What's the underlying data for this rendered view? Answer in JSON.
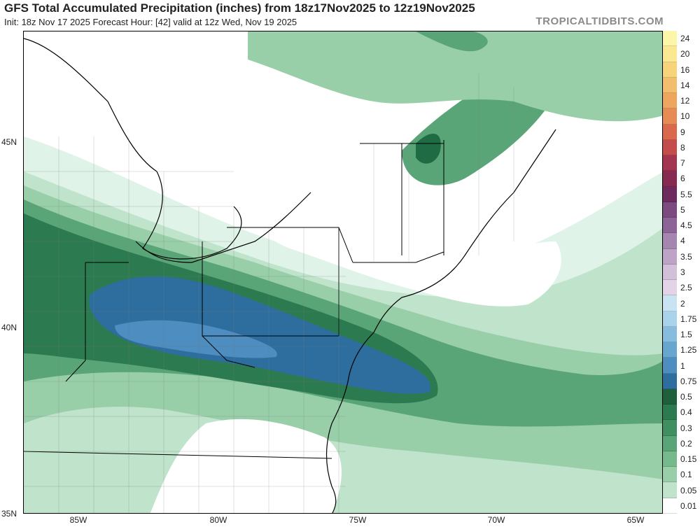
{
  "title": "GFS Total Accumulated Precipitation (inches) from 18z17Nov2025 to 12z19Nov2025",
  "subtitle": "Init: 18z Nov 17 2025   Forecast Hour: [42]   valid at 12z Wed, Nov 19 2025",
  "brand": "TROPICALTIDBITS.COM",
  "latitudes": [
    "45N",
    "40N",
    "35N"
  ],
  "longitudes": [
    "85W",
    "80W",
    "75W",
    "70W",
    "65W"
  ],
  "colorbar": {
    "levels": [
      "24",
      "20",
      "16",
      "14",
      "12",
      "10",
      "9",
      "8",
      "7",
      "6",
      "5.5",
      "5",
      "4.5",
      "4",
      "3.5",
      "3",
      "2.5",
      "2",
      "1.75",
      "1.5",
      "1.25",
      "1",
      "0.75",
      "0.5",
      "0.4",
      "0.3",
      "0.2",
      "0.15",
      "0.1",
      "0.05",
      "0.01"
    ],
    "colors": [
      "#fdf6a8",
      "#fbe890",
      "#f7d37a",
      "#f2bd6c",
      "#eea55f",
      "#e78a55",
      "#d9684d",
      "#c44c4c",
      "#a43550",
      "#872a52",
      "#6e2a5c",
      "#7c4a7e",
      "#8c6596",
      "#a586ae",
      "#bda3c5",
      "#d2bfd9",
      "#e2d3e6",
      "#c8e4f3",
      "#a9d3ea",
      "#86bdde",
      "#66a6cf",
      "#4d8dbf",
      "#2d6e9f",
      "#1f5f3b",
      "#2c7a4f",
      "#3f8f60",
      "#5aa577",
      "#76b98d",
      "#98cfa8",
      "#bfe3cb",
      "#ffffff"
    ]
  },
  "map": {
    "water_color": "#ffffff",
    "precip_palette": {
      "p001": "#dff3e8",
      "p005": "#bfe3cb",
      "p010": "#98cfa8",
      "p015": "#76b98d",
      "p020": "#5aa577",
      "p030": "#3f8f60",
      "p040": "#2c7a4f",
      "p050": "#1f6b44",
      "p075": "#2d6e9f",
      "p100": "#4d8dbf"
    }
  }
}
